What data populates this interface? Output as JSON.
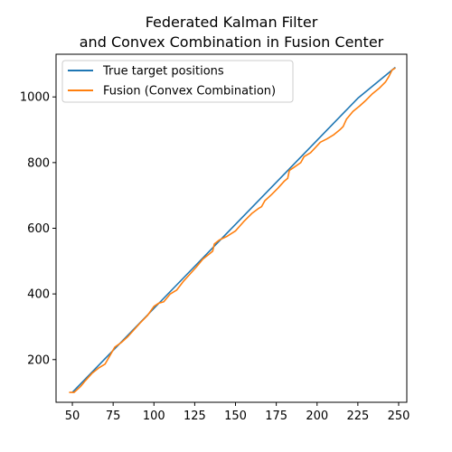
{
  "chart_data": {
    "type": "line",
    "title": "Federated Kalman Filter\nand Convex Combination in Fusion Center",
    "title_lines": [
      "Federated Kalman Filter",
      "and Convex Combination in Fusion Center"
    ],
    "xlabel": "",
    "ylabel": "",
    "xlim": [
      40,
      255
    ],
    "ylim": [
      70,
      1130
    ],
    "x_ticks": [
      50,
      75,
      100,
      125,
      150,
      175,
      200,
      225,
      250
    ],
    "y_ticks": [
      200,
      400,
      600,
      800,
      1000
    ],
    "grid": false,
    "legend_position": "top-left",
    "series": [
      {
        "name": "True target positions",
        "color": "#1f77b4",
        "x": [
          50,
          75,
          100,
          125,
          150,
          175,
          200,
          225,
          248
        ],
        "y": [
          100,
          228,
          356,
          484,
          612,
          740,
          868,
          996,
          1090
        ]
      },
      {
        "name": "Fusion (Convex Combination)",
        "color": "#ff7f0e",
        "x": [
          48,
          51,
          55,
          58,
          62,
          66,
          70,
          73,
          76,
          80,
          84,
          88,
          92,
          96,
          100,
          103,
          106,
          110,
          114,
          118,
          122,
          126,
          130,
          134,
          136,
          137,
          140,
          145,
          150,
          155,
          160,
          164,
          166,
          168,
          172,
          176,
          180,
          182,
          183,
          186,
          190,
          192,
          196,
          199,
          202,
          206,
          210,
          214,
          216,
          218,
          222,
          226,
          230,
          234,
          238,
          242,
          244,
          246,
          248
        ],
        "y": [
          100,
          100,
          118,
          136,
          158,
          174,
          186,
          212,
          238,
          252,
          270,
          292,
          314,
          334,
          362,
          372,
          376,
          400,
          412,
          438,
          460,
          482,
          506,
          522,
          530,
          552,
          564,
          576,
          592,
          620,
          645,
          660,
          666,
          684,
          702,
          722,
          744,
          752,
          776,
          786,
          800,
          818,
          830,
          846,
          862,
          872,
          884,
          900,
          910,
          932,
          956,
          972,
          990,
          1010,
          1026,
          1046,
          1062,
          1082,
          1088
        ]
      }
    ]
  }
}
